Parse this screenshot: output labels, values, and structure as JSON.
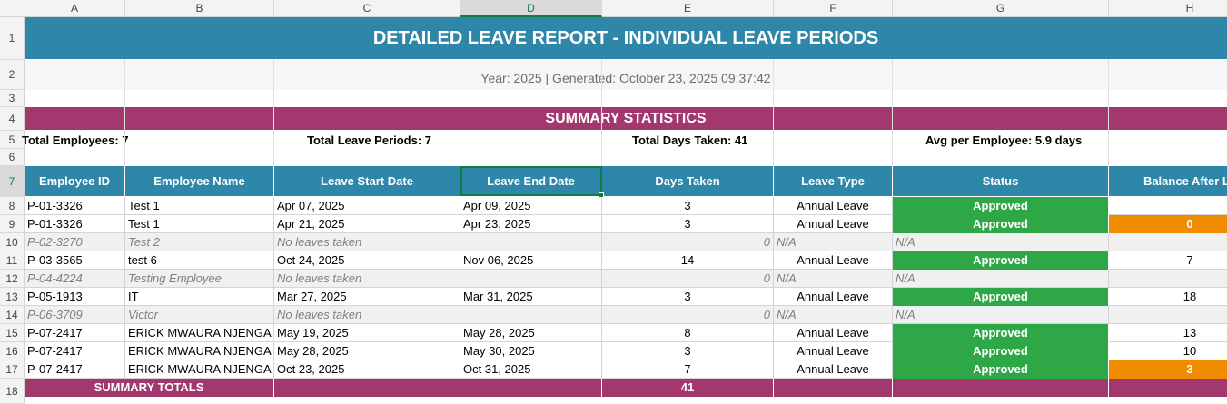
{
  "columns": [
    "A",
    "B",
    "C",
    "D",
    "E",
    "F",
    "G",
    "H"
  ],
  "selected_column": "D",
  "rows": [
    "1",
    "2",
    "3",
    "4",
    "5",
    "6",
    "7",
    "8",
    "9",
    "10",
    "11",
    "12",
    "13",
    "14",
    "15",
    "16",
    "17",
    "18"
  ],
  "selected_row": "7",
  "report": {
    "title": "DETAILED LEAVE REPORT - INDIVIDUAL LEAVE PERIODS",
    "subtitle": "Year: 2025 | Generated: October 23, 2025 09:37:42",
    "summary_title": "SUMMARY STATISTICS",
    "stats": {
      "total_employees": "Total Employees: 7",
      "total_leave_periods": "Total Leave Periods: 7",
      "total_days_taken": "Total Days Taken: 41",
      "avg_per_employee": "Avg per Employee: 5.9 days"
    }
  },
  "table": {
    "headers": [
      "Employee ID",
      "Employee Name",
      "Leave Start Date",
      "Leave End Date",
      "Days Taken",
      "Leave Type",
      "Status",
      "Balance After Le"
    ],
    "rows": [
      {
        "id": "P-01-3326",
        "name": "Test 1",
        "start": "Apr 07, 2025",
        "end": "Apr 09, 2025",
        "days": "3",
        "type": "Annual Leave",
        "status": "Approved",
        "balance": "",
        "empty": false,
        "warn": false
      },
      {
        "id": "P-01-3326",
        "name": "Test 1",
        "start": "Apr 21, 2025",
        "end": "Apr 23, 2025",
        "days": "3",
        "type": "Annual Leave",
        "status": "Approved",
        "balance": "0",
        "empty": false,
        "warn": true
      },
      {
        "id": "P-02-3270",
        "name": "Test 2",
        "start": "No leaves taken",
        "end": "",
        "days": "0",
        "type": "N/A",
        "status": "N/A",
        "balance": "",
        "empty": true,
        "warn": false
      },
      {
        "id": "P-03-3565",
        "name": "test 6",
        "start": "Oct 24, 2025",
        "end": "Nov 06, 2025",
        "days": "14",
        "type": "Annual Leave",
        "status": "Approved",
        "balance": "7",
        "empty": false,
        "warn": false
      },
      {
        "id": "P-04-4224",
        "name": "Testing Employee",
        "start": "No leaves taken",
        "end": "",
        "days": "0",
        "type": "N/A",
        "status": "N/A",
        "balance": "",
        "empty": true,
        "warn": false
      },
      {
        "id": "P-05-1913",
        "name": "IT",
        "start": "Mar 27, 2025",
        "end": "Mar 31, 2025",
        "days": "3",
        "type": "Annual Leave",
        "status": "Approved",
        "balance": "18",
        "empty": false,
        "warn": false
      },
      {
        "id": "P-06-3709",
        "name": "Victor",
        "start": "No leaves taken",
        "end": "",
        "days": "0",
        "type": "N/A",
        "status": "N/A",
        "balance": "",
        "empty": true,
        "warn": false
      },
      {
        "id": "P-07-2417",
        "name": "ERICK MWAURA NJENGA",
        "start": "May 19, 2025",
        "end": "May 28, 2025",
        "days": "8",
        "type": "Annual Leave",
        "status": "Approved",
        "balance": "13",
        "empty": false,
        "warn": false
      },
      {
        "id": "P-07-2417",
        "name": "ERICK MWAURA NJENGA",
        "start": "May 28, 2025",
        "end": "May 30, 2025",
        "days": "3",
        "type": "Annual Leave",
        "status": "Approved",
        "balance": "10",
        "empty": false,
        "warn": false
      },
      {
        "id": "P-07-2417",
        "name": "ERICK MWAURA NJENGA",
        "start": "Oct 23, 2025",
        "end": "Oct 31, 2025",
        "days": "7",
        "type": "Annual Leave",
        "status": "Approved",
        "balance": "3",
        "empty": false,
        "warn": true
      }
    ],
    "totals_label": "SUMMARY TOTALS",
    "totals_days": "41"
  },
  "colors": {
    "header_blue": "#2e86a8",
    "summary_purple": "#a3386e",
    "approved_green": "#2ea846",
    "warn_orange": "#f08c00",
    "excel_select": "#107c41"
  }
}
